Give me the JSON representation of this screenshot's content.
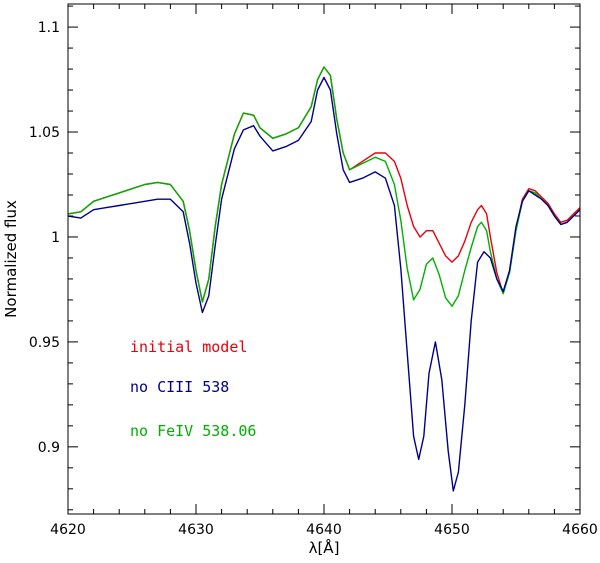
{
  "chart_data": {
    "type": "line",
    "title": "",
    "xlabel": "λ[Å]",
    "ylabel": "Normalized flux",
    "xlim": [
      4620,
      4660
    ],
    "ylim": [
      0.868,
      1.111
    ],
    "xticks": [
      4620,
      4630,
      4640,
      4650,
      4660
    ],
    "xtick_labels": [
      "4620",
      "4630",
      "4640",
      "4650",
      "4660"
    ],
    "yticks": [
      0.9,
      0.95,
      1.0,
      1.05,
      1.1
    ],
    "ytick_labels": [
      "0.9",
      "0.95",
      "1",
      "1.05",
      "1.1"
    ],
    "grid": false,
    "legend_placement": "lower-left",
    "series": [
      {
        "name": "initial model",
        "color": "#e8000b",
        "x": [
          4619,
          4620,
          4621,
          4622,
          4623,
          4624,
          4625,
          4626,
          4627,
          4628,
          4629,
          4629.5,
          4630,
          4630.5,
          4631,
          4631.5,
          4632,
          4633,
          4633.7,
          4634.5,
          4635,
          4636,
          4637,
          4638,
          4639,
          4639.5,
          4640,
          4640.5,
          4641,
          4641.5,
          4642,
          4643,
          4644,
          4644.8,
          4645.5,
          4646,
          4646.5,
          4647,
          4647.5,
          4648,
          4648.5,
          4649,
          4649.5,
          4650,
          4650.5,
          4651,
          4651.5,
          4652,
          4652.3,
          4652.7,
          4653,
          4653.5,
          4654,
          4654.5,
          4655,
          4655.5,
          4656,
          4656.5,
          4657,
          4657.5,
          4658,
          4658.5,
          4659,
          4659.5,
          4660
        ],
        "y": [
          1.011,
          1.011,
          1.012,
          1.017,
          1.019,
          1.021,
          1.023,
          1.025,
          1.026,
          1.025,
          1.017,
          1.003,
          0.984,
          0.969,
          0.98,
          1.005,
          1.025,
          1.049,
          1.059,
          1.058,
          1.052,
          1.047,
          1.049,
          1.052,
          1.062,
          1.075,
          1.081,
          1.077,
          1.056,
          1.04,
          1.032,
          1.036,
          1.04,
          1.04,
          1.036,
          1.028,
          1.015,
          1.005,
          1.0,
          1.003,
          1.003,
          0.997,
          0.991,
          0.988,
          0.991,
          0.998,
          1.007,
          1.013,
          1.015,
          1.011,
          1.0,
          0.983,
          0.973,
          0.984,
          1.004,
          1.018,
          1.023,
          1.022,
          1.019,
          1.016,
          1.011,
          1.007,
          1.008,
          1.011,
          1.014
        ]
      },
      {
        "name": "no CIII 538",
        "color": "#00008b",
        "x": [
          4619,
          4620,
          4621,
          4622,
          4623,
          4624,
          4625,
          4626,
          4627,
          4628,
          4629,
          4629.5,
          4630,
          4630.5,
          4631,
          4631.5,
          4632,
          4633,
          4633.7,
          4634.5,
          4635,
          4636,
          4637,
          4638,
          4639,
          4639.5,
          4640,
          4640.5,
          4641,
          4641.5,
          4642,
          4643,
          4644,
          4644.8,
          4645.5,
          4646,
          4646.5,
          4647,
          4647.4,
          4647.8,
          4648.2,
          4648.7,
          4649.2,
          4649.7,
          4650.1,
          4650.5,
          4651,
          4651.5,
          4652,
          4652.5,
          4653,
          4653.5,
          4654,
          4654.5,
          4655,
          4655.5,
          4656,
          4656.5,
          4657,
          4657.5,
          4658,
          4658.5,
          4659,
          4659.5,
          4660
        ],
        "y": [
          1.01,
          1.01,
          1.009,
          1.013,
          1.014,
          1.015,
          1.016,
          1.017,
          1.018,
          1.018,
          1.012,
          0.997,
          0.978,
          0.964,
          0.972,
          0.996,
          1.018,
          1.042,
          1.051,
          1.053,
          1.048,
          1.041,
          1.043,
          1.046,
          1.055,
          1.07,
          1.076,
          1.07,
          1.049,
          1.032,
          1.026,
          1.028,
          1.031,
          1.028,
          1.015,
          0.985,
          0.945,
          0.905,
          0.894,
          0.905,
          0.935,
          0.95,
          0.932,
          0.898,
          0.879,
          0.888,
          0.92,
          0.96,
          0.988,
          0.993,
          0.99,
          0.98,
          0.974,
          0.984,
          1.005,
          1.017,
          1.022,
          1.02,
          1.018,
          1.015,
          1.01,
          1.006,
          1.007,
          1.01,
          1.013
        ]
      },
      {
        "name": "no FeIV 538.06",
        "color": "#00b000",
        "x": [
          4619,
          4620,
          4621,
          4622,
          4623,
          4624,
          4625,
          4626,
          4627,
          4628,
          4629,
          4629.5,
          4630,
          4630.5,
          4631,
          4631.5,
          4632,
          4633,
          4633.7,
          4634.5,
          4635,
          4636,
          4637,
          4638,
          4639,
          4639.5,
          4640,
          4640.5,
          4641,
          4641.5,
          4642,
          4643,
          4644,
          4644.8,
          4645.5,
          4646,
          4646.5,
          4647,
          4647.5,
          4648,
          4648.5,
          4649,
          4649.5,
          4650,
          4650.5,
          4651,
          4651.5,
          4652,
          4652.3,
          4652.7,
          4653,
          4653.5,
          4654,
          4654.5,
          4655,
          4655.5,
          4656,
          4656.5,
          4657,
          4657.5,
          4658,
          4658.5,
          4659,
          4659.5,
          4660
        ],
        "y": [
          1.011,
          1.011,
          1.012,
          1.017,
          1.019,
          1.021,
          1.023,
          1.025,
          1.026,
          1.025,
          1.017,
          1.003,
          0.984,
          0.969,
          0.98,
          1.005,
          1.025,
          1.049,
          1.059,
          1.058,
          1.052,
          1.047,
          1.049,
          1.052,
          1.062,
          1.075,
          1.081,
          1.077,
          1.056,
          1.04,
          1.032,
          1.035,
          1.038,
          1.036,
          1.025,
          1.008,
          0.985,
          0.97,
          0.975,
          0.987,
          0.99,
          0.982,
          0.971,
          0.967,
          0.972,
          0.984,
          0.995,
          1.005,
          1.007,
          1.003,
          0.993,
          0.98,
          0.973,
          0.983,
          1.003,
          1.017,
          1.022,
          1.021,
          1.018,
          1.015,
          1.01,
          1.006,
          1.007,
          1.01,
          1.013
        ]
      }
    ]
  }
}
